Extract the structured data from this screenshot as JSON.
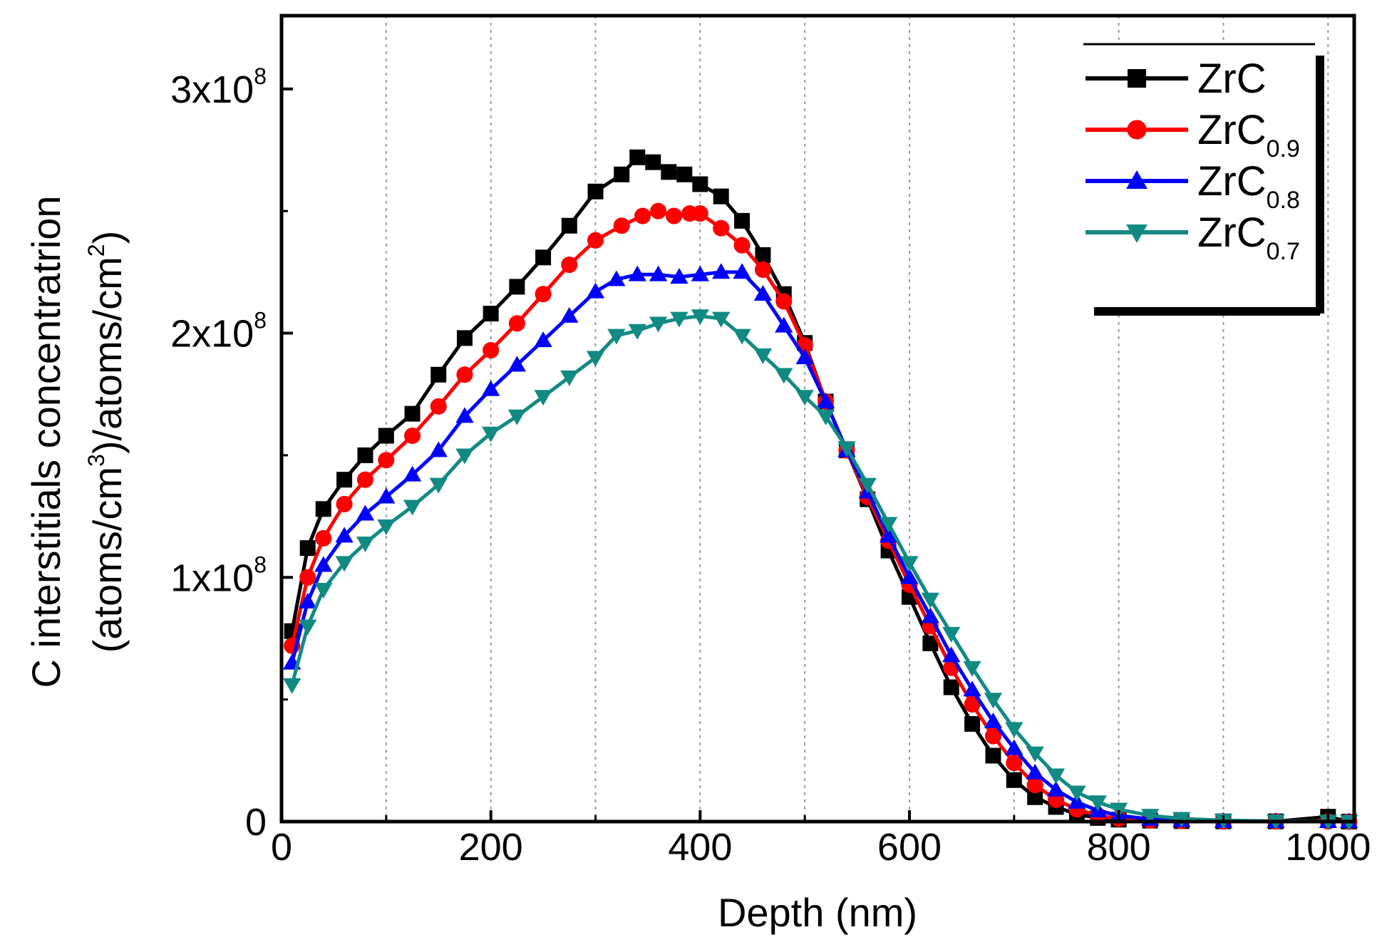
{
  "chart_data": {
    "type": "line",
    "xlabel": "Depth (nm)",
    "ylabel_line1": "C interstitials concentratrion",
    "ylabel_line2_parts": [
      "(atoms/cm",
      "3",
      ")/atoms/cm",
      "2",
      ")"
    ],
    "xlim": [
      0,
      1025
    ],
    "ylim": [
      0,
      330000000
    ],
    "x_ticks": [
      0,
      200,
      400,
      600,
      800,
      1000
    ],
    "x_tick_labels": [
      "0",
      "200",
      "400",
      "600",
      "800",
      "1000"
    ],
    "y_ticks": [
      0,
      100000000,
      200000000,
      300000000
    ],
    "y_tick_labels": [
      {
        "base": "0",
        "exp": ""
      },
      {
        "base": "1x10",
        "exp": "8"
      },
      {
        "base": "2x10",
        "exp": "8"
      },
      {
        "base": "3x10",
        "exp": "8"
      }
    ],
    "grid": "vertical dotted at x = 100 ... 1000",
    "legend_position": "top-right",
    "series": [
      {
        "name": "ZrC",
        "subscript": "",
        "color": "#000000",
        "marker": "square",
        "x": [
          10,
          25,
          40,
          60,
          80,
          100,
          125,
          150,
          175,
          200,
          225,
          250,
          275,
          300,
          325,
          340,
          355,
          370,
          385,
          400,
          420,
          440,
          460,
          480,
          500,
          520,
          540,
          560,
          580,
          600,
          620,
          640,
          660,
          680,
          700,
          720,
          740,
          760,
          780,
          800,
          830,
          860,
          900,
          950,
          1000,
          1020
        ],
        "values": [
          78000000.0,
          112000000.0,
          128000000.0,
          140000000.0,
          150000000.0,
          158000000.0,
          167000000.0,
          183000000.0,
          198000000.0,
          208000000.0,
          219000000.0,
          231000000.0,
          244000000.0,
          258000000.0,
          265000000.0,
          272000000.0,
          270000000.0,
          266000000.0,
          265000000.0,
          261000000.0,
          256000000.0,
          246000000.0,
          232000000.0,
          216000000.0,
          196000000.0,
          172000000.0,
          152000000.0,
          132000000.0,
          111000000.0,
          92000000.0,
          73000000.0,
          55000000.0,
          40000000.0,
          27000000.0,
          17000000.0,
          10000000.0,
          6000000.0,
          3000000.0,
          1500000.0,
          800000.0,
          400000.0,
          200000.0,
          100000.0,
          100000.0,
          2000000.0,
          0
        ]
      },
      {
        "name": "ZrC",
        "subscript": "0.9",
        "color": "#ff0000",
        "marker": "circle",
        "x": [
          10,
          25,
          40,
          60,
          80,
          100,
          125,
          150,
          175,
          200,
          225,
          250,
          275,
          300,
          325,
          345,
          360,
          375,
          390,
          400,
          420,
          440,
          460,
          480,
          500,
          520,
          540,
          560,
          580,
          600,
          620,
          640,
          660,
          680,
          700,
          720,
          740,
          760,
          780,
          800,
          830,
          860,
          900,
          950,
          1000,
          1020
        ],
        "values": [
          72000000.0,
          100000000.0,
          116000000.0,
          130000000.0,
          140000000.0,
          148000000.0,
          158000000.0,
          170000000.0,
          183000000.0,
          193000000.0,
          204000000.0,
          216000000.0,
          228000000.0,
          238000000.0,
          244000000.0,
          248000000.0,
          250000000.0,
          248000000.0,
          249000000.0,
          249000000.0,
          243000000.0,
          236000000.0,
          226000000.0,
          213000000.0,
          195000000.0,
          172000000.0,
          152000000.0,
          133000000.0,
          115000000.0,
          97000000.0,
          80000000.0,
          63000000.0,
          48000000.0,
          35000000.0,
          24000000.0,
          15000000.0,
          9000000.0,
          5000000.0,
          2500000.0,
          1200000.0,
          500000.0,
          300000.0,
          100000.0,
          100000.0,
          100000.0,
          0
        ]
      },
      {
        "name": "ZrC",
        "subscript": "0.8",
        "color": "#0000ff",
        "marker": "triangle-up",
        "x": [
          10,
          25,
          40,
          60,
          80,
          100,
          125,
          150,
          175,
          200,
          225,
          250,
          275,
          300,
          320,
          340,
          360,
          380,
          400,
          420,
          440,
          460,
          480,
          500,
          520,
          540,
          560,
          580,
          600,
          620,
          640,
          660,
          680,
          700,
          720,
          740,
          760,
          780,
          800,
          830,
          860,
          900,
          950,
          1000,
          1020
        ],
        "values": [
          65000000.0,
          90000000.0,
          105000000.0,
          117000000.0,
          126000000.0,
          133000000.0,
          142000000.0,
          152000000.0,
          166000000.0,
          177000000.0,
          187000000.0,
          197000000.0,
          207000000.0,
          217000000.0,
          222000000.0,
          224000000.0,
          224000000.0,
          223000000.0,
          224000000.0,
          225000000.0,
          225000000.0,
          216000000.0,
          203000000.0,
          190000000.0,
          172000000.0,
          152000000.0,
          135000000.0,
          117000000.0,
          100000000.0,
          84000000.0,
          68000000.0,
          54000000.0,
          41000000.0,
          30000000.0,
          20000000.0,
          13000000.0,
          8000000.0,
          4500000.0,
          2500000.0,
          1000000.0,
          500000.0,
          200000.0,
          100000.0,
          100000.0,
          0
        ]
      },
      {
        "name": "ZrC",
        "subscript": "0.7",
        "color": "#128a84",
        "marker": "triangle-down",
        "x": [
          10,
          25,
          40,
          60,
          80,
          100,
          125,
          150,
          175,
          200,
          225,
          250,
          275,
          300,
          320,
          340,
          360,
          380,
          400,
          420,
          440,
          460,
          480,
          500,
          520,
          540,
          560,
          580,
          600,
          620,
          640,
          660,
          680,
          700,
          720,
          740,
          760,
          780,
          800,
          830,
          860,
          900,
          950,
          1000,
          1020
        ],
        "values": [
          56000000.0,
          80000000.0,
          95000000.0,
          106000000.0,
          114000000.0,
          121000000.0,
          129000000.0,
          138000000.0,
          150000000.0,
          159000000.0,
          166000000.0,
          174000000.0,
          182000000.0,
          190000000.0,
          199000000.0,
          201000000.0,
          204000000.0,
          206000000.0,
          207000000.0,
          206000000.0,
          199000000.0,
          191000000.0,
          183000000.0,
          174000000.0,
          166000000.0,
          153000000.0,
          138000000.0,
          122000000.0,
          106000000.0,
          91000000.0,
          77000000.0,
          63000000.0,
          50000000.0,
          38000000.0,
          28000000.0,
          19000000.0,
          12000000.0,
          8000000.0,
          5000000.0,
          2500000.0,
          1200000.0,
          500000.0,
          200000.0,
          100000.0,
          0
        ]
      }
    ]
  }
}
